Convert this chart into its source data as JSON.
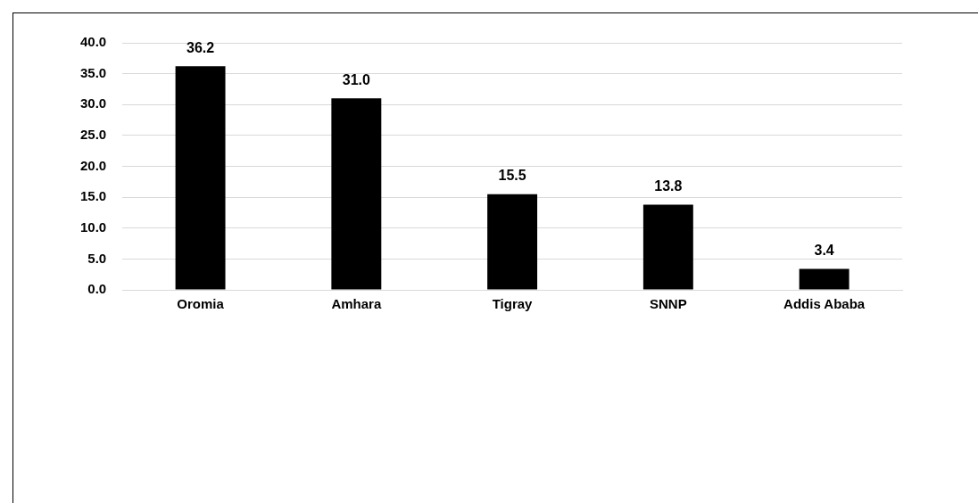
{
  "chart_data": {
    "type": "bar",
    "categories": [
      "Oromia",
      "Amhara",
      "Tigray",
      "SNNP",
      "Addis Ababa"
    ],
    "values": [
      36.2,
      31.0,
      15.5,
      13.8,
      3.4
    ],
    "value_labels": [
      "36.2",
      "31.0",
      "15.5",
      "13.8",
      "3.4"
    ],
    "color": "#000000",
    "ylim": [
      0,
      40
    ],
    "yticks": [
      {
        "value": 0,
        "label": "0.0"
      },
      {
        "value": 5,
        "label": "5.0"
      },
      {
        "value": 10,
        "label": "10.0"
      },
      {
        "value": 15,
        "label": "15.0"
      },
      {
        "value": 20,
        "label": "20.0"
      },
      {
        "value": 25,
        "label": "25.0"
      },
      {
        "value": 30,
        "label": "30.0"
      },
      {
        "value": 35,
        "label": "35.0"
      },
      {
        "value": 40,
        "label": "40.0"
      }
    ],
    "grid": "y",
    "legend": false
  }
}
